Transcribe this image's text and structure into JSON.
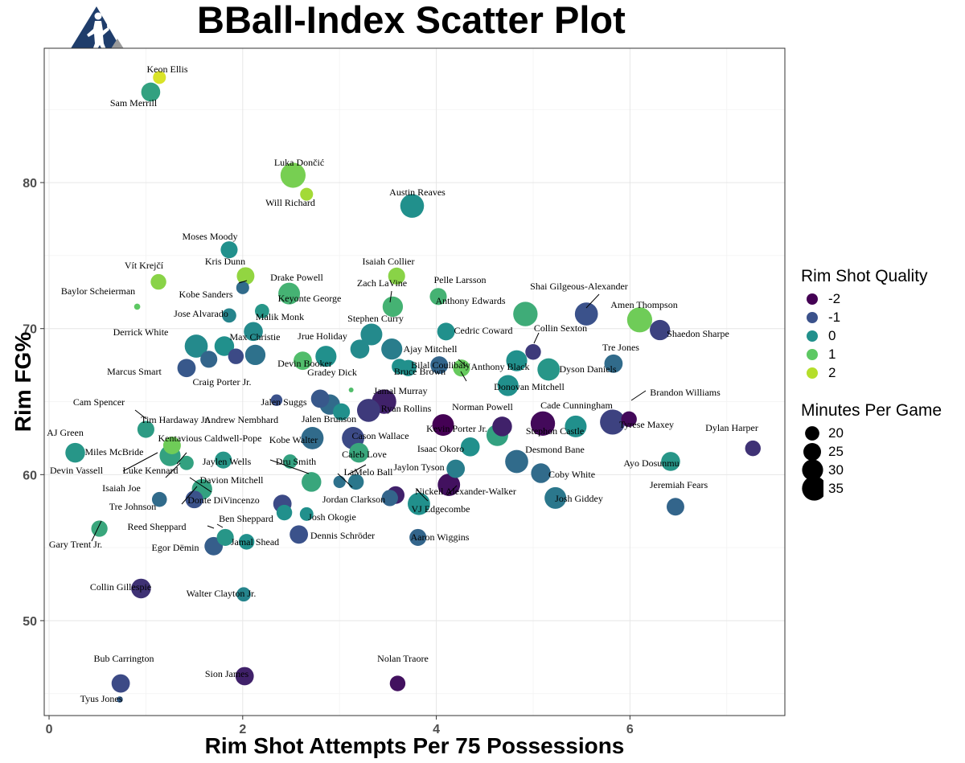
{
  "header": {
    "title": "BBall-Index Scatter Plot",
    "logo_icon": "basketball-player-logo-icon"
  },
  "legend": {
    "color_title": "Rim Shot Quality",
    "color_items": [
      {
        "label": "-2",
        "value": -2,
        "color": "#440154"
      },
      {
        "label": "-1",
        "value": -1,
        "color": "#3b528b"
      },
      {
        "label": "0",
        "value": 0,
        "color": "#21908c"
      },
      {
        "label": "1",
        "value": 1,
        "color": "#5dc863"
      },
      {
        "label": "2",
        "value": 2,
        "color": "#b5de2b"
      }
    ],
    "size_title": "Minutes Per Game",
    "size_items": [
      {
        "label": "20",
        "value": 20
      },
      {
        "label": "25",
        "value": 25
      },
      {
        "label": "30",
        "value": 30
      },
      {
        "label": "35",
        "value": 35
      }
    ]
  },
  "chart_data": {
    "type": "scatter",
    "title": "BBall-Index Scatter Plot",
    "xlabel": "Rim Shot Attempts Per 75 Possessions",
    "ylabel": "Rim FG%",
    "xlim": [
      -0.05,
      7.6
    ],
    "ylim": [
      43.5,
      89.2
    ],
    "x_ticks": [
      0,
      2,
      4,
      6
    ],
    "y_ticks": [
      50,
      60,
      70,
      80
    ],
    "grid": true,
    "color_scale": [
      "#440154",
      "#3b528b",
      "#21908c",
      "#5dc863",
      "#b5de2b",
      "#fde725"
    ],
    "points": [
      {
        "name": "Keon Ellis",
        "x": 1.14,
        "y": 87.2,
        "quality": 2.5,
        "mpg": 18
      },
      {
        "name": "Sam Merrill",
        "x": 1.05,
        "y": 86.2,
        "quality": 0.3,
        "mpg": 27
      },
      {
        "name": "Luka Dončić",
        "x": 2.52,
        "y": 80.5,
        "quality": 1.3,
        "mpg": 36
      },
      {
        "name": "Will Richard",
        "x": 2.66,
        "y": 79.2,
        "quality": 1.8,
        "mpg": 18
      },
      {
        "name": "Austin Reaves",
        "x": 3.75,
        "y": 78.4,
        "quality": 0.0,
        "mpg": 34
      },
      {
        "name": "Moses Moody",
        "x": 1.86,
        "y": 75.4,
        "quality": 0.0,
        "mpg": 24
      },
      {
        "name": "Vít Krejčí",
        "x": 1.13,
        "y": 73.2,
        "quality": 1.5,
        "mpg": 22
      },
      {
        "name": "Kris Dunn",
        "x": 2.03,
        "y": 73.6,
        "quality": 1.6,
        "mpg": 25
      },
      {
        "name": "Drake Powell",
        "x": 2.0,
        "y": 72.8,
        "quality": -0.6,
        "mpg": 18
      },
      {
        "name": "Isaiah Collier",
        "x": 3.59,
        "y": 73.6,
        "quality": 1.5,
        "mpg": 24
      },
      {
        "name": "Baylor Scheierman",
        "x": 0.91,
        "y": 71.5,
        "quality": 1.0,
        "mpg": 8
      },
      {
        "name": "Keyonte George",
        "x": 2.48,
        "y": 72.4,
        "quality": 0.6,
        "mpg": 31
      },
      {
        "name": "Kobe Sanders",
        "x": 2.2,
        "y": 71.2,
        "quality": 0.1,
        "mpg": 20
      },
      {
        "name": "Zach LaVine",
        "x": 3.55,
        "y": 71.5,
        "quality": 0.6,
        "mpg": 29
      },
      {
        "name": "Pelle Larsson",
        "x": 4.02,
        "y": 72.2,
        "quality": 0.6,
        "mpg": 24
      },
      {
        "name": "Shai Gilgeous-Alexander",
        "x": 5.55,
        "y": 71.0,
        "quality": -1.0,
        "mpg": 33
      },
      {
        "name": "Anthony Edwards",
        "x": 4.92,
        "y": 71.0,
        "quality": 0.5,
        "mpg": 35
      },
      {
        "name": "Amen Thompson",
        "x": 6.1,
        "y": 70.6,
        "quality": 1.2,
        "mpg": 36
      },
      {
        "name": "Jose Alvarado",
        "x": 1.86,
        "y": 70.9,
        "quality": -0.2,
        "mpg": 20
      },
      {
        "name": "Malik Monk",
        "x": 2.11,
        "y": 69.8,
        "quality": -0.1,
        "mpg": 27
      },
      {
        "name": "Shaedon Sharpe",
        "x": 6.31,
        "y": 69.9,
        "quality": -1.2,
        "mpg": 29
      },
      {
        "name": "Stephen Curry",
        "x": 3.33,
        "y": 69.6,
        "quality": -0.1,
        "mpg": 31
      },
      {
        "name": "Cedric Coward",
        "x": 4.1,
        "y": 69.8,
        "quality": 0.0,
        "mpg": 25
      },
      {
        "name": "Derrick White",
        "x": 1.52,
        "y": 68.8,
        "quality": -0.1,
        "mpg": 33
      },
      {
        "name": "Max Christie",
        "x": 1.81,
        "y": 68.8,
        "quality": 0.0,
        "mpg": 28
      },
      {
        "name": "Jrue Holiday",
        "x": 3.21,
        "y": 68.6,
        "quality": -0.1,
        "mpg": 27
      },
      {
        "name": "Ajay Mitchell",
        "x": 3.54,
        "y": 68.6,
        "quality": -0.3,
        "mpg": 30
      },
      {
        "name": "Collin Sexton",
        "x": 5.0,
        "y": 68.4,
        "quality": -1.3,
        "mpg": 22
      },
      {
        "name": "Marcus Smart",
        "x": 1.42,
        "y": 67.3,
        "quality": -0.9,
        "mpg": 26
      },
      {
        "name": "Max Christie 2",
        "x": 1.65,
        "y": 67.9,
        "quality": -0.7,
        "mpg": 24
      },
      {
        "name": "Craig Porter Jr.",
        "x": 1.93,
        "y": 68.1,
        "quality": -1.1,
        "mpg": 22
      },
      {
        "name": "Devin Booker",
        "x": 2.13,
        "y": 68.2,
        "quality": -0.5,
        "mpg": 29
      },
      {
        "name": "Gradey Dick",
        "x": 2.62,
        "y": 67.8,
        "quality": 0.8,
        "mpg": 26
      },
      {
        "name": "Jrue Holiday 2",
        "x": 2.86,
        "y": 68.1,
        "quality": 0.0,
        "mpg": 30
      },
      {
        "name": "Bruce Brown",
        "x": 3.62,
        "y": 67.4,
        "quality": 0.0,
        "mpg": 22
      },
      {
        "name": "Bruce Brown 2",
        "x": 3.71,
        "y": 67.3,
        "quality": 0.0,
        "mpg": 23
      },
      {
        "name": "Bilal Coulibaly",
        "x": 4.03,
        "y": 67.5,
        "quality": -0.7,
        "mpg": 25
      },
      {
        "name": "Anthony Black",
        "x": 4.26,
        "y": 67.3,
        "quality": 1.1,
        "mpg": 24
      },
      {
        "name": "Donovan Mitchell",
        "x": 4.83,
        "y": 67.8,
        "quality": 0.0,
        "mpg": 30
      },
      {
        "name": "Donovan Mitchell 2",
        "x": 4.74,
        "y": 66.1,
        "quality": 0.0,
        "mpg": 30
      },
      {
        "name": "Dyson Daniels",
        "x": 5.16,
        "y": 67.2,
        "quality": 0.1,
        "mpg": 32
      },
      {
        "name": "Tre Jones",
        "x": 5.83,
        "y": 67.6,
        "quality": -0.6,
        "mpg": 26
      },
      {
        "name": "Gradey Dick dot",
        "x": 3.12,
        "y": 65.8,
        "quality": 0.8,
        "mpg": 6
      },
      {
        "name": "Jalen Suggs",
        "x": 2.35,
        "y": 65.1,
        "quality": -1.0,
        "mpg": 16
      },
      {
        "name": "Jalen Suggs 2",
        "x": 2.8,
        "y": 65.2,
        "quality": -0.9,
        "mpg": 26
      },
      {
        "name": "Jalen Suggs 3",
        "x": 2.9,
        "y": 64.8,
        "quality": -0.6,
        "mpg": 29
      },
      {
        "name": "Jamal Murray",
        "x": 3.46,
        "y": 65.0,
        "quality": -1.6,
        "mpg": 35
      },
      {
        "name": "Jamal Murray 2",
        "x": 3.3,
        "y": 64.4,
        "quality": -1.3,
        "mpg": 33
      },
      {
        "name": "Jamal Murray 3",
        "x": 3.02,
        "y": 64.3,
        "quality": 0.0,
        "mpg": 24
      },
      {
        "name": "Norman Powell",
        "x": 4.07,
        "y": 63.4,
        "quality": -2.0,
        "mpg": 31
      },
      {
        "name": "Kevin Porter Jr.",
        "x": 4.68,
        "y": 63.3,
        "quality": -1.6,
        "mpg": 28
      },
      {
        "name": "Cade Cunningham",
        "x": 5.1,
        "y": 63.5,
        "quality": -1.9,
        "mpg": 35
      },
      {
        "name": "Stephon Castle",
        "x": 5.44,
        "y": 63.3,
        "quality": 0.0,
        "mpg": 31
      },
      {
        "name": "Tyrese Maxey",
        "x": 5.82,
        "y": 63.6,
        "quality": -1.2,
        "mpg": 36
      },
      {
        "name": "Brandon Williams",
        "x": 5.99,
        "y": 63.8,
        "quality": -1.9,
        "mpg": 22
      },
      {
        "name": "Dylan Harper",
        "x": 7.27,
        "y": 61.8,
        "quality": -1.4,
        "mpg": 22
      },
      {
        "name": "Cam Spencer",
        "x": 1.0,
        "y": 63.1,
        "quality": 0.2,
        "mpg": 24
      },
      {
        "name": "Tim Hardaway Jr.",
        "x": 1.27,
        "y": 62.0,
        "quality": 1.2,
        "mpg": 25
      },
      {
        "name": "Andrew Nembhard",
        "x": 1.25,
        "y": 61.3,
        "quality": 0.3,
        "mpg": 30
      },
      {
        "name": "Jalen Brunson",
        "x": 2.72,
        "y": 62.5,
        "quality": -0.6,
        "mpg": 32
      },
      {
        "name": "Jalen Brunson 2",
        "x": 3.14,
        "y": 62.5,
        "quality": -1.1,
        "mpg": 32
      },
      {
        "name": "Cason Wallace",
        "x": 3.2,
        "y": 61.5,
        "quality": 0.4,
        "mpg": 28
      },
      {
        "name": "Kevin Porter Jr. 2",
        "x": 4.35,
        "y": 61.9,
        "quality": 0.0,
        "mpg": 27
      },
      {
        "name": "Stephon Castle 2",
        "x": 4.63,
        "y": 62.7,
        "quality": 0.3,
        "mpg": 31
      },
      {
        "name": "AJ Green",
        "x": 0.27,
        "y": 61.5,
        "quality": 0.1,
        "mpg": 28
      },
      {
        "name": "Kentavious Caldwell-Pope",
        "x": 1.42,
        "y": 60.8,
        "quality": 0.3,
        "mpg": 20
      },
      {
        "name": "Jaylen Wells",
        "x": 1.8,
        "y": 61.0,
        "quality": 0.1,
        "mpg": 24
      },
      {
        "name": "Jaylen Wells 2",
        "x": 2.49,
        "y": 60.9,
        "quality": 0.3,
        "mpg": 20
      },
      {
        "name": "Isaac Okoro",
        "x": 4.2,
        "y": 60.4,
        "quality": -0.3,
        "mpg": 26
      },
      {
        "name": "Desmond Bane",
        "x": 4.83,
        "y": 60.9,
        "quality": -0.6,
        "mpg": 33
      },
      {
        "name": "Coby White",
        "x": 5.08,
        "y": 60.1,
        "quality": -0.6,
        "mpg": 28
      },
      {
        "name": "Ayo Dosunmu",
        "x": 6.42,
        "y": 60.9,
        "quality": 0.1,
        "mpg": 27
      },
      {
        "name": "Dru Smith",
        "x": 2.71,
        "y": 59.5,
        "quality": 0.4,
        "mpg": 28
      },
      {
        "name": "Caleb Love",
        "x": 3.0,
        "y": 59.5,
        "quality": -0.5,
        "mpg": 17
      },
      {
        "name": "LaMelo Ball",
        "x": 3.17,
        "y": 59.5,
        "quality": -0.4,
        "mpg": 22
      },
      {
        "name": "Jaylon Tyson",
        "x": 3.58,
        "y": 58.6,
        "quality": -1.6,
        "mpg": 25
      },
      {
        "name": "Jaylon Tyson 2",
        "x": 3.52,
        "y": 58.4,
        "quality": -0.7,
        "mpg": 23
      },
      {
        "name": "Nickeil Alexander-Walker",
        "x": 4.13,
        "y": 59.3,
        "quality": -1.8,
        "mpg": 32
      },
      {
        "name": "VJ Edgecombe",
        "x": 3.82,
        "y": 58.0,
        "quality": 0.0,
        "mpg": 32
      },
      {
        "name": "Josh Giddey",
        "x": 5.23,
        "y": 58.4,
        "quality": -0.4,
        "mpg": 31
      },
      {
        "name": "Jeremiah Fears",
        "x": 6.47,
        "y": 57.8,
        "quality": -0.7,
        "mpg": 25
      },
      {
        "name": "Davion Mitchell",
        "x": 1.58,
        "y": 59.0,
        "quality": 0.3,
        "mpg": 29
      },
      {
        "name": "Isaiah Joe",
        "x": 1.14,
        "y": 58.3,
        "quality": -0.6,
        "mpg": 21
      },
      {
        "name": "Donte DiVincenzo",
        "x": 1.5,
        "y": 58.3,
        "quality": -1.0,
        "mpg": 25
      },
      {
        "name": "Jordan Clarkson",
        "x": 2.41,
        "y": 58.0,
        "quality": -1.1,
        "mpg": 26
      },
      {
        "name": "Jordan Clarkson 2",
        "x": 2.43,
        "y": 57.4,
        "quality": 0.0,
        "mpg": 22
      },
      {
        "name": "Jordan Clarkson 3",
        "x": 2.66,
        "y": 57.3,
        "quality": 0.0,
        "mpg": 19
      },
      {
        "name": "Gary Trent Jr.",
        "x": 0.52,
        "y": 56.3,
        "quality": 0.4,
        "mpg": 23
      },
      {
        "name": "Reed Sheppard",
        "x": 1.82,
        "y": 55.7,
        "quality": 0.1,
        "mpg": 24
      },
      {
        "name": "Ben Sheppard",
        "x": 2.04,
        "y": 55.4,
        "quality": 0.0,
        "mpg": 22
      },
      {
        "name": "Egor Dëmin",
        "x": 1.7,
        "y": 55.1,
        "quality": -0.8,
        "mpg": 26
      },
      {
        "name": "Josh Okogie",
        "x": 2.58,
        "y": 55.9,
        "quality": -1.0,
        "mpg": 26
      },
      {
        "name": "Aaron Wiggins",
        "x": 3.81,
        "y": 55.7,
        "quality": -0.7,
        "mpg": 24
      },
      {
        "name": "Collin Gillespie",
        "x": 0.95,
        "y": 52.2,
        "quality": -1.4,
        "mpg": 28
      },
      {
        "name": "Walter Clayton Jr.",
        "x": 2.01,
        "y": 51.8,
        "quality": -0.2,
        "mpg": 20
      },
      {
        "name": "Bub Carrington",
        "x": 0.74,
        "y": 45.7,
        "quality": -1.1,
        "mpg": 26
      },
      {
        "name": "Sion James",
        "x": 2.02,
        "y": 46.2,
        "quality": -1.6,
        "mpg": 26
      },
      {
        "name": "Nolan Traore",
        "x": 3.6,
        "y": 45.7,
        "quality": -1.8,
        "mpg": 22
      },
      {
        "name": "Tyus Jones",
        "x": 0.73,
        "y": 44.6,
        "quality": -0.8,
        "mpg": 8
      }
    ],
    "labels": [
      {
        "text": "Keon Ellis"
      },
      {
        "text": "Sam Merrill"
      },
      {
        "text": "Luka Dončić"
      },
      {
        "text": "Will Richard"
      },
      {
        "text": "Austin Reaves"
      },
      {
        "text": "Moses Moody"
      },
      {
        "text": "Vít Krejčí"
      },
      {
        "text": "Kris Dunn"
      },
      {
        "text": "Drake Powell"
      },
      {
        "text": "Isaiah Collier"
      },
      {
        "text": "Pelle Larsson"
      },
      {
        "text": "Baylor Scheierman"
      },
      {
        "text": "Zach LaVine"
      },
      {
        "text": "Shai Gilgeous-Alexander"
      },
      {
        "text": "Kobe Sanders"
      },
      {
        "text": "Keyonte George"
      },
      {
        "text": "Anthony Edwards"
      },
      {
        "text": "Amen Thompson"
      },
      {
        "text": "Jose Alvarado"
      },
      {
        "text": "Malik Monk"
      },
      {
        "text": "Shaedon Sharpe"
      },
      {
        "text": "Stephen Curry"
      },
      {
        "text": "Cedric Coward"
      },
      {
        "text": "Derrick White"
      },
      {
        "text": "Max Christie"
      },
      {
        "text": "Jrue Holiday"
      },
      {
        "text": "Collin Sexton"
      },
      {
        "text": "Ajay Mitchell"
      },
      {
        "text": "Tre Jones"
      },
      {
        "text": "Devin Booker"
      },
      {
        "text": "Anthony Black"
      },
      {
        "text": "Marcus Smart"
      },
      {
        "text": "Gradey Dick"
      },
      {
        "text": "Bruce Brown"
      },
      {
        "text": "Dyson Daniels"
      },
      {
        "text": "Bilal Coulibaly"
      },
      {
        "text": "Donovan Mitchell"
      },
      {
        "text": "Craig Porter Jr."
      },
      {
        "text": "Jamal Murray"
      },
      {
        "text": "Brandon Williams"
      },
      {
        "text": "Jalen Suggs"
      },
      {
        "text": "Cade Cunningham"
      },
      {
        "text": "Norman Powell"
      },
      {
        "text": "Ryan Rollins"
      },
      {
        "text": "Cam Spencer"
      },
      {
        "text": "Tyrese Maxey"
      },
      {
        "text": "Kevin Porter Jr."
      },
      {
        "text": "Tim Hardaway Jr."
      },
      {
        "text": "Andrew Nembhard"
      },
      {
        "text": "Jalen Brunson"
      },
      {
        "text": "Dylan Harper"
      },
      {
        "text": "Stephon Castle"
      },
      {
        "text": "AJ Green"
      },
      {
        "text": "Cason Wallace"
      },
      {
        "text": "Kentavious Caldwell-Pope"
      },
      {
        "text": "Kobe Walter"
      },
      {
        "text": "Miles McBride"
      },
      {
        "text": "Isaac Okoro"
      },
      {
        "text": "Desmond Bane"
      },
      {
        "text": "Jaylen Wells"
      },
      {
        "text": "Luke Kennard"
      },
      {
        "text": "Dru Smith"
      },
      {
        "text": "Ayo Dosunmu"
      },
      {
        "text": "Devin Vassell"
      },
      {
        "text": "Caleb Love"
      },
      {
        "text": "Jaylon Tyson"
      },
      {
        "text": "Coby White"
      },
      {
        "text": "Davion Mitchell"
      },
      {
        "text": "LaMelo Ball"
      },
      {
        "text": "Isaiah Joe"
      },
      {
        "text": "Nickeil Alexander-Walker"
      },
      {
        "text": "Jeremiah Fears"
      },
      {
        "text": "Donte DiVincenzo"
      },
      {
        "text": "Jordan Clarkson"
      },
      {
        "text": "Josh Giddey"
      },
      {
        "text": "Tre Johnson"
      },
      {
        "text": "VJ Edgecombe"
      },
      {
        "text": "Ben Sheppard"
      },
      {
        "text": "Josh Okogie"
      },
      {
        "text": "Reed Sheppard"
      },
      {
        "text": "Dennis Schröder"
      },
      {
        "text": "Aaron Wiggins"
      },
      {
        "text": "Jamal Shead"
      },
      {
        "text": "Gary Trent Jr."
      },
      {
        "text": "Egor Dëmin"
      },
      {
        "text": "Collin Gillespie"
      },
      {
        "text": "Walter Clayton Jr."
      },
      {
        "text": "Bub Carrington"
      },
      {
        "text": "Nolan Traore"
      },
      {
        "text": "Sion James"
      },
      {
        "text": "Tyus Jones"
      }
    ]
  }
}
